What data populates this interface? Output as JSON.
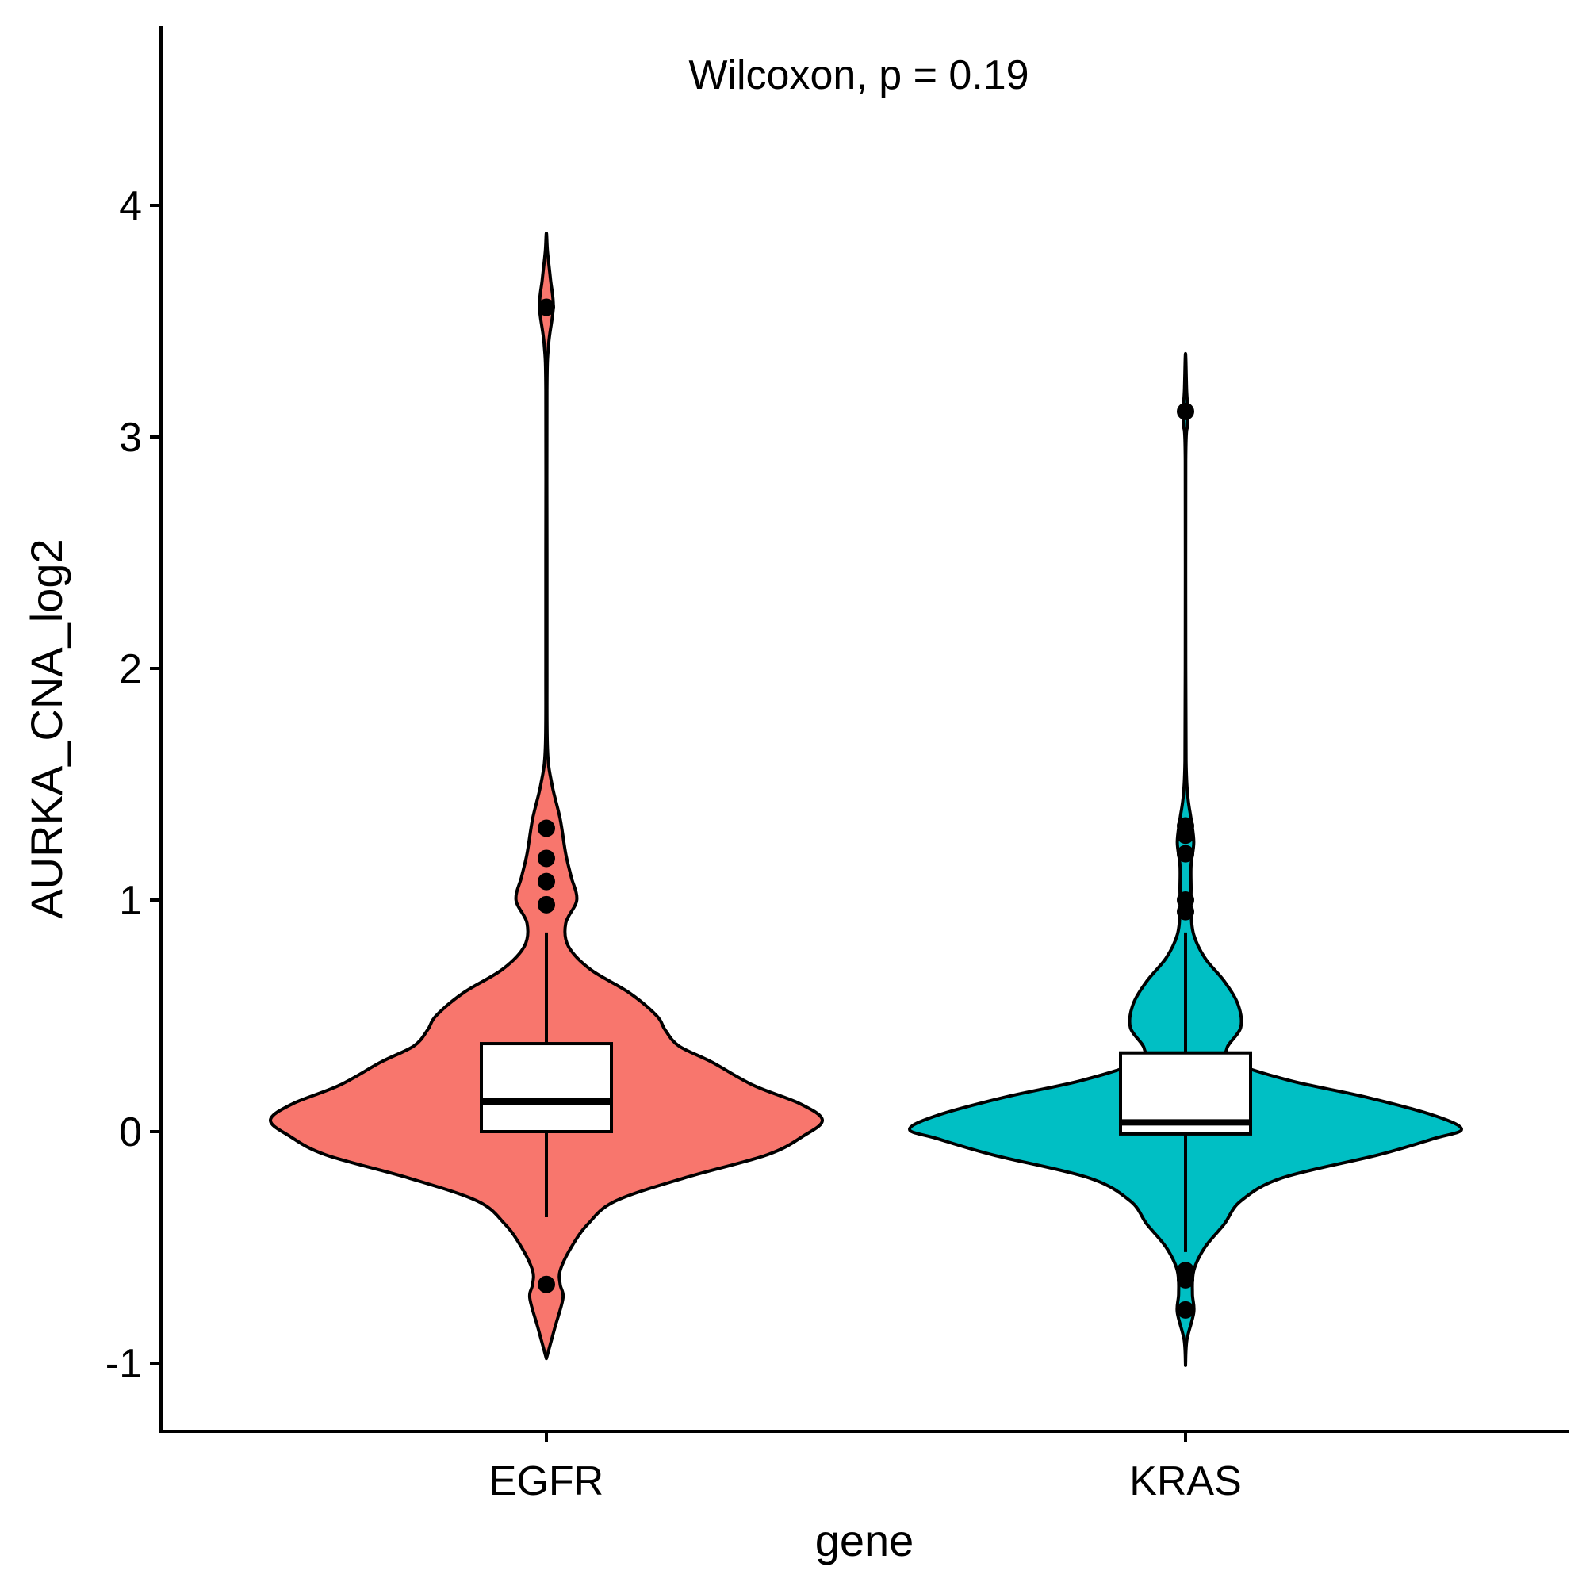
{
  "chart_data": {
    "type": "violin",
    "title": "",
    "xlabel": "gene",
    "ylabel": "AURKA_CNA_log2",
    "ylim": [
      -1.3,
      4.75
    ],
    "yticks": [
      -1,
      0,
      1,
      2,
      3,
      4
    ],
    "ytick_labels": [
      "-1",
      "0",
      "1",
      "2",
      "3",
      "4"
    ],
    "grid": false,
    "annotation": "Wilcoxon, p = 0.19",
    "categories": [
      "EGFR",
      "KRAS"
    ],
    "groups": [
      {
        "name": "EGFR",
        "fill": "#F8766D",
        "box": {
          "whisker_low": -0.37,
          "q1": 0.0,
          "median": 0.13,
          "q3": 0.38,
          "whisker_high": 0.86
        },
        "outliers": [
          -0.66,
          0.98,
          1.08,
          1.18,
          1.31,
          3.56
        ],
        "violin_range": [
          -0.98,
          3.88
        ],
        "density": [
          [
            -0.98,
            0.0
          ],
          [
            -0.85,
            0.03
          ],
          [
            -0.72,
            0.06
          ],
          [
            -0.66,
            0.05
          ],
          [
            -0.6,
            0.05
          ],
          [
            -0.5,
            0.09
          ],
          [
            -0.4,
            0.15
          ],
          [
            -0.3,
            0.25
          ],
          [
            -0.2,
            0.5
          ],
          [
            -0.1,
            0.8
          ],
          [
            -0.02,
            0.93
          ],
          [
            0.05,
            1.0
          ],
          [
            0.12,
            0.92
          ],
          [
            0.2,
            0.75
          ],
          [
            0.3,
            0.6
          ],
          [
            0.37,
            0.48
          ],
          [
            0.44,
            0.43
          ],
          [
            0.5,
            0.4
          ],
          [
            0.6,
            0.3
          ],
          [
            0.7,
            0.16
          ],
          [
            0.8,
            0.08
          ],
          [
            0.9,
            0.07
          ],
          [
            1.0,
            0.11
          ],
          [
            1.1,
            0.09
          ],
          [
            1.2,
            0.07
          ],
          [
            1.35,
            0.05
          ],
          [
            1.5,
            0.02
          ],
          [
            1.65,
            0.004
          ],
          [
            2.0,
            0.002
          ],
          [
            2.5,
            0.002
          ],
          [
            3.2,
            0.002
          ],
          [
            3.4,
            0.008
          ],
          [
            3.56,
            0.025
          ],
          [
            3.68,
            0.015
          ],
          [
            3.8,
            0.004
          ],
          [
            3.88,
            0.0
          ]
        ]
      },
      {
        "name": "KRAS",
        "fill": "#00BFC4",
        "box": {
          "whisker_low": -0.52,
          "q1": -0.01,
          "median": 0.04,
          "q3": 0.34,
          "whisker_high": 0.86
        },
        "outliers": [
          -0.77,
          -0.64,
          -0.6,
          0.95,
          1.0,
          1.2,
          1.28,
          1.32,
          3.11
        ],
        "violin_range": [
          -1.01,
          3.36
        ],
        "density": [
          [
            -1.01,
            0.0
          ],
          [
            -0.9,
            0.005
          ],
          [
            -0.78,
            0.03
          ],
          [
            -0.7,
            0.025
          ],
          [
            -0.6,
            0.03
          ],
          [
            -0.5,
            0.07
          ],
          [
            -0.4,
            0.14
          ],
          [
            -0.3,
            0.2
          ],
          [
            -0.2,
            0.35
          ],
          [
            -0.1,
            0.7
          ],
          [
            -0.03,
            0.9
          ],
          [
            0.01,
            1.0
          ],
          [
            0.07,
            0.9
          ],
          [
            0.15,
            0.65
          ],
          [
            0.22,
            0.38
          ],
          [
            0.3,
            0.17
          ],
          [
            0.36,
            0.15
          ],
          [
            0.45,
            0.2
          ],
          [
            0.55,
            0.19
          ],
          [
            0.65,
            0.14
          ],
          [
            0.75,
            0.07
          ],
          [
            0.85,
            0.03
          ],
          [
            0.95,
            0.02
          ],
          [
            1.05,
            0.02
          ],
          [
            1.15,
            0.02
          ],
          [
            1.25,
            0.03
          ],
          [
            1.35,
            0.02
          ],
          [
            1.45,
            0.008
          ],
          [
            1.6,
            0.002
          ],
          [
            2.0,
            0.001
          ],
          [
            2.9,
            0.001
          ],
          [
            3.05,
            0.007
          ],
          [
            3.11,
            0.009
          ],
          [
            3.2,
            0.004
          ],
          [
            3.36,
            0.0
          ]
        ]
      }
    ]
  }
}
